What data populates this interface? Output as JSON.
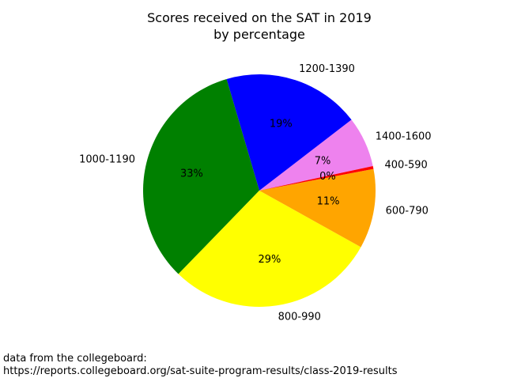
{
  "chart_data": {
    "type": "pie",
    "title": "Scores received on the SAT in 2019",
    "subtitle": "by percentage",
    "slices": [
      {
        "label": "1400-1600",
        "value": 7,
        "pct_label": "7%",
        "color": "#ee82ee"
      },
      {
        "label": "1200-1390",
        "value": 19,
        "pct_label": "19%",
        "color": "#0000ff"
      },
      {
        "label": "1000-1190",
        "value": 33,
        "pct_label": "33%",
        "color": "#008000"
      },
      {
        "label": "800-990",
        "value": 29,
        "pct_label": "29%",
        "color": "#ffff00"
      },
      {
        "label": "600-790",
        "value": 11,
        "pct_label": "11%",
        "color": "#ffa500"
      },
      {
        "label": "400-590",
        "value": 0.4,
        "pct_label": "0%",
        "color": "#ff0000"
      }
    ],
    "start_angle_deg": 12.2,
    "direction": "counterclockwise"
  },
  "footnote": {
    "line1": "data from the collegeboard:",
    "line2": "https://reports.collegeboard.org/sat-suite-program-results/class-2019-results"
  }
}
